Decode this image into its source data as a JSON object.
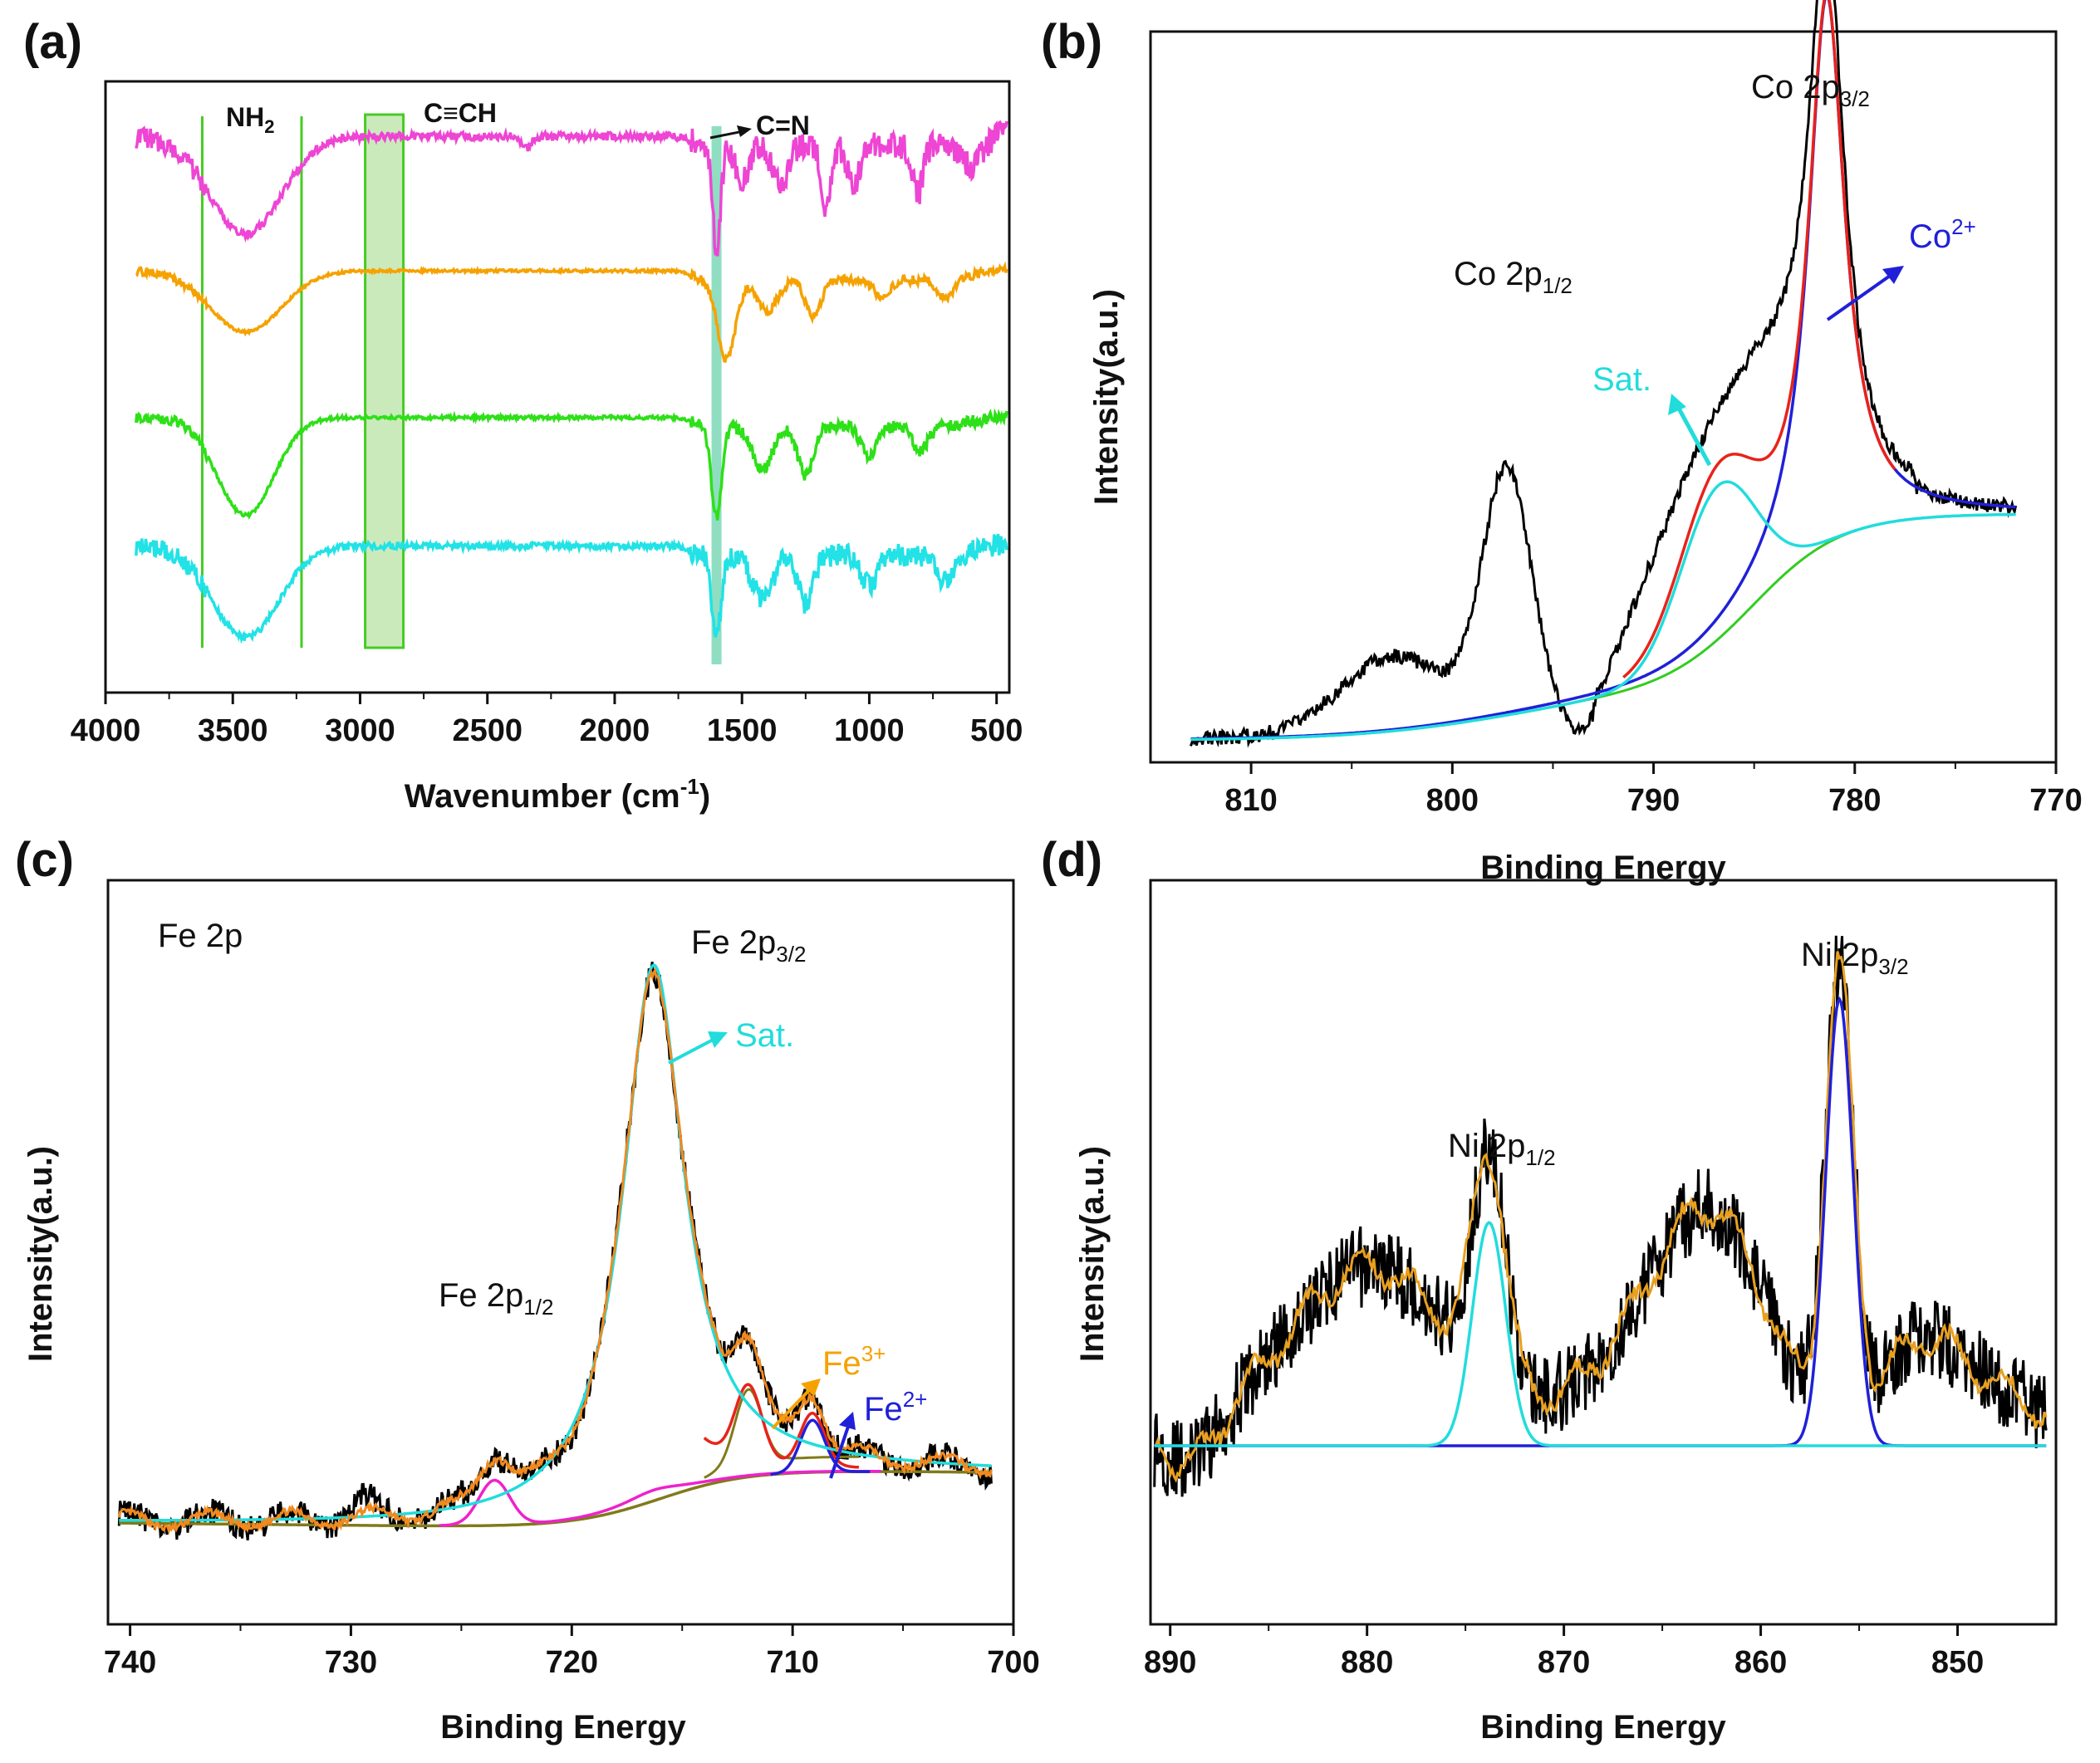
{
  "figure": {
    "panel_labels": [
      "(a)",
      "(b)",
      "(c)",
      "(d)"
    ]
  },
  "chart_data": [
    {
      "id": "a",
      "type": "line",
      "title": "",
      "xlabel": "Wavenumber (cm",
      "xlabel_sup": "-1",
      "xlabel_tail": ")",
      "ylabel": "",
      "xlim": [
        4000,
        450
      ],
      "xticks": [
        4000,
        3500,
        3000,
        2500,
        2000,
        1500,
        1000,
        500
      ],
      "ylim": [
        0,
        100
      ],
      "annotations": {
        "nh2": "NH",
        "nh2_sub": "2",
        "cch": "C≡CH",
        "cn": "C=N"
      },
      "marker_lines_cm": [
        3620,
        3230
      ],
      "highlight_band_cm": [
        2980,
        2830
      ],
      "highlight_line_cm": 1600,
      "series": [
        {
          "name": "series-1",
          "color": "#ee45d4",
          "baseline": 91,
          "noise": 1.3,
          "features": [
            [
              3450,
              -16,
              140
            ],
            [
              2350,
              -2,
              20
            ],
            [
              1600,
              -17,
              16
            ],
            [
              1500,
              -6,
              25
            ],
            [
              1350,
              -6,
              30
            ],
            [
              1170,
              -10,
              18
            ],
            [
              1060,
              -6,
              25
            ],
            [
              810,
              -8,
              20
            ],
            [
              600,
              -4,
              40
            ]
          ]
        },
        {
          "name": "series-2",
          "color": "#f5a200",
          "baseline": 69,
          "noise": 0.45,
          "features": [
            [
              3450,
              -10,
              140
            ],
            [
              1560,
              -13,
              35
            ],
            [
              1400,
              -5,
              40
            ],
            [
              1220,
              -6,
              30
            ],
            [
              950,
              -3,
              30
            ],
            [
              700,
              -3,
              30
            ]
          ]
        },
        {
          "name": "series-3",
          "color": "#2ee018",
          "baseline": 45,
          "noise": 0.6,
          "features": [
            [
              3450,
              -16,
              110
            ],
            [
              1600,
              -15,
              20
            ],
            [
              1420,
              -7,
              40
            ],
            [
              1250,
              -8,
              30
            ],
            [
              1000,
              -5,
              30
            ],
            [
              800,
              -4,
              30
            ]
          ]
        },
        {
          "name": "series-4",
          "color": "#22e2e6",
          "baseline": 24,
          "noise": 1.1,
          "features": [
            [
              3450,
              -15,
              130
            ],
            [
              1600,
              -13,
              18
            ],
            [
              1420,
              -7,
              40
            ],
            [
              1250,
              -8,
              30
            ],
            [
              1000,
              -5,
              30
            ],
            [
              700,
              -4,
              40
            ]
          ]
        }
      ]
    },
    {
      "id": "b",
      "type": "line",
      "title": "",
      "xlabel": "Binding Energy",
      "ylabel": "Intensity(a.u.)",
      "xlim": [
        815,
        770
      ],
      "xticks": [
        810,
        800,
        790,
        780,
        770
      ],
      "ylim": [
        0,
        100
      ],
      "annotations": {
        "peak_main": "Co 2p",
        "peak_main_sub": "3/2",
        "peak_second": "Co 2p",
        "peak_second_sub": "1/2",
        "sat": "Sat.",
        "ion": "Co",
        "ion_sup": "2+"
      },
      "series": [
        {
          "name": "raw",
          "color": "#000000"
        },
        {
          "name": "fit-envelope",
          "color": "#e8231a"
        },
        {
          "name": "Co2+",
          "color": "#2020d8"
        },
        {
          "name": "Sat.",
          "color": "#22dcdc"
        },
        {
          "name": "background",
          "color": "#33cc22"
        }
      ]
    },
    {
      "id": "c",
      "type": "line",
      "title": "",
      "xlabel": "Binding Energy",
      "ylabel": "Intensity(a.u.)",
      "xlim": [
        741,
        700
      ],
      "xticks": [
        740,
        730,
        720,
        710,
        700
      ],
      "ylim": [
        0,
        100
      ],
      "annotations": {
        "region": "Fe 2p",
        "peak_main": "Fe 2p",
        "peak_main_sub": "3/2",
        "peak_second": "Fe 2p",
        "peak_second_sub": "1/2",
        "sat": "Sat.",
        "fe3": "Fe",
        "fe3_sup": "3+",
        "fe2": "Fe",
        "fe2_sup": "2+"
      },
      "series": [
        {
          "name": "raw",
          "color": "#000000"
        },
        {
          "name": "fit-envelope",
          "color": "#f08a20"
        },
        {
          "name": "Sat.",
          "color": "#22dcdc"
        },
        {
          "name": "Fe 2p1/2 component",
          "color": "#ee22cc"
        },
        {
          "name": "Fe3+",
          "color": "#e8231a"
        },
        {
          "name": "Fe2+",
          "color": "#2020d8"
        },
        {
          "name": "background",
          "color": "#807a1a"
        }
      ]
    },
    {
      "id": "d",
      "type": "line",
      "title": "",
      "xlabel": "Binding Energy",
      "ylabel": "Intensity(a.u.)",
      "xlim": [
        891,
        845
      ],
      "xticks": [
        890,
        880,
        870,
        860,
        850
      ],
      "ylim": [
        0,
        100
      ],
      "annotations": {
        "peak_main": "Ni 2p",
        "peak_main_sub": "3/2",
        "peak_second": "Ni 2p",
        "peak_second_sub": "1/2"
      },
      "series": [
        {
          "name": "raw",
          "color": "#000000"
        },
        {
          "name": "fit-envelope",
          "color": "#e8a020"
        },
        {
          "name": "Ni 2p3/2 component",
          "color": "#2020d8"
        },
        {
          "name": "Ni 2p1/2 component",
          "color": "#22dcdc"
        }
      ]
    }
  ]
}
